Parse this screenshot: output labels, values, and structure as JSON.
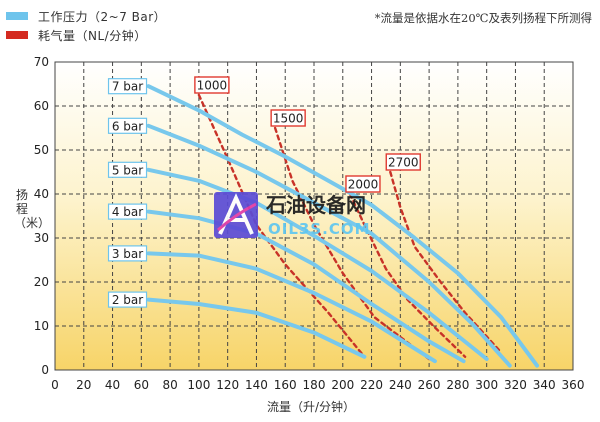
{
  "legend": {
    "items": [
      {
        "label": "工作压力（2~7 Bar）",
        "color": "#6ec4ec"
      },
      {
        "label": "耗气量（NL/分钟）",
        "color": "#d42a20"
      }
    ]
  },
  "note": "*流量是依据水在20℃及表列扬程下所测得",
  "axis_labels": {
    "y": "扬程（米）",
    "x": "流量（升/分钟）"
  },
  "watermark": {
    "text_cn": "石油设备网",
    "text_en": "OIL3S.COM"
  },
  "colors": {
    "pressure_line": "#78c8ec",
    "air_line": "#c83228",
    "label_border": "#e03a30",
    "bar_label_border": "#6ec4ec",
    "grid": "#444444",
    "bg_top": "#ffffff",
    "bg_bottom": "#f7d468"
  },
  "chart_data": {
    "type": "line",
    "xlabel": "流量（升/分钟）",
    "ylabel": "扬程（米）",
    "xlim": [
      0,
      360
    ],
    "ylim": [
      0,
      70
    ],
    "xticks": [
      0,
      20,
      40,
      60,
      80,
      100,
      120,
      140,
      160,
      180,
      200,
      220,
      240,
      260,
      280,
      300,
      320,
      340,
      360
    ],
    "yticks": [
      0,
      10,
      20,
      30,
      40,
      50,
      60,
      70
    ],
    "grid": true,
    "pressure_series": [
      {
        "name": "7 bar",
        "points": [
          [
            65,
            64.5
          ],
          [
            100,
            59
          ],
          [
            130,
            53.5
          ],
          [
            160,
            48.5
          ],
          [
            190,
            43
          ],
          [
            220,
            37.5
          ],
          [
            250,
            30
          ],
          [
            280,
            22
          ],
          [
            310,
            12
          ],
          [
            335,
            1
          ]
        ]
      },
      {
        "name": "6 bar",
        "points": [
          [
            65,
            55.5
          ],
          [
            100,
            51
          ],
          [
            140,
            45
          ],
          [
            180,
            38
          ],
          [
            220,
            31
          ],
          [
            260,
            20
          ],
          [
            290,
            10.5
          ],
          [
            316,
            1
          ]
        ]
      },
      {
        "name": "5 bar",
        "points": [
          [
            65,
            45.5
          ],
          [
            100,
            43
          ],
          [
            140,
            38
          ],
          [
            180,
            30.5
          ],
          [
            220,
            22.5
          ],
          [
            260,
            13
          ],
          [
            300,
            2.5
          ]
        ]
      },
      {
        "name": "4 bar",
        "points": [
          [
            65,
            36
          ],
          [
            100,
            34.5
          ],
          [
            140,
            31
          ],
          [
            180,
            24
          ],
          [
            220,
            15
          ],
          [
            260,
            6.5
          ],
          [
            284,
            2
          ]
        ]
      },
      {
        "name": "3 bar",
        "points": [
          [
            65,
            26.5
          ],
          [
            100,
            26
          ],
          [
            140,
            23
          ],
          [
            180,
            17.5
          ],
          [
            220,
            11
          ],
          [
            264,
            2
          ]
        ]
      },
      {
        "name": "2 bar",
        "points": [
          [
            65,
            16
          ],
          [
            100,
            15
          ],
          [
            140,
            13
          ],
          [
            180,
            8.5
          ],
          [
            215,
            3
          ]
        ]
      }
    ],
    "air_series": [
      {
        "name": "1000",
        "points": [
          [
            100,
            62.5
          ],
          [
            120,
            48
          ],
          [
            140,
            33
          ],
          [
            160,
            24
          ],
          [
            190,
            13
          ],
          [
            215,
            3
          ]
        ]
      },
      {
        "name": "1500",
        "points": [
          [
            153,
            55
          ],
          [
            165,
            43
          ],
          [
            180,
            33
          ],
          [
            200,
            22
          ],
          [
            222,
            12
          ],
          [
            260,
            2.5
          ]
        ]
      },
      {
        "name": "2000",
        "points": [
          [
            205,
            40
          ],
          [
            215,
            33
          ],
          [
            230,
            23
          ],
          [
            245,
            16
          ],
          [
            263,
            10
          ],
          [
            285,
            3
          ]
        ]
      },
      {
        "name": "2700",
        "points": [
          [
            233,
            45
          ],
          [
            240,
            37
          ],
          [
            250,
            28
          ],
          [
            268,
            20
          ],
          [
            285,
            13
          ],
          [
            310,
            4
          ]
        ]
      }
    ]
  }
}
